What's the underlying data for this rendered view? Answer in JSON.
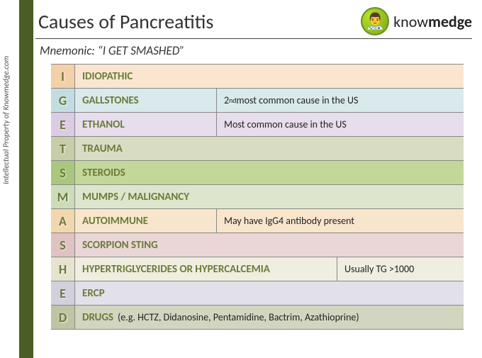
{
  "credit": "Intellectual Property of Knowmedge.com",
  "title": "Causes of Pancreatitis",
  "logo": {
    "prefix": "know",
    "bold": "medge"
  },
  "subtitle": "Mnemonic:  “I GET SMASHED”",
  "colors": {
    "sidebar": "#4a5d23",
    "row_bg": [
      "#fae6d0",
      "#d9e9ec",
      "#e7ddec",
      "#d8dcc2",
      "#c4d79b",
      "#dde6cc",
      "#f8e6cc",
      "#ead6d6",
      "#efeee0",
      "#e2e0e8",
      "#d2d6c0"
    ],
    "letter_bg": [
      "#f2d0a8",
      "#c2dde2",
      "#dccbe4",
      "#c7cda8",
      "#aac77e",
      "#cddcb8",
      "#f2d7ae",
      "#e0c2c2",
      "#e6e4cc",
      "#d3d0de",
      "#bfc5a4"
    ],
    "term_text": "#6b7a3a",
    "letter_text": "#6b7a3a"
  },
  "layout": {
    "term_widths": [
      548,
      200,
      200,
      548,
      548,
      548,
      200,
      548,
      370,
      548,
      548
    ]
  },
  "rows": [
    {
      "letter": "I",
      "term": "IDIOPATHIC",
      "note": "",
      "extra": ""
    },
    {
      "letter": "G",
      "term": "GALLSTONES",
      "note": "2ⁿᵈ most common cause in the US",
      "extra": ""
    },
    {
      "letter": "E",
      "term": "ETHANOL",
      "note": "Most common cause in the US",
      "extra": ""
    },
    {
      "letter": "T",
      "term": "TRAUMA",
      "note": "",
      "extra": ""
    },
    {
      "letter": "S",
      "term": "STEROIDS",
      "note": "",
      "extra": ""
    },
    {
      "letter": "M",
      "term": "MUMPS / MALIGNANCY",
      "note": "",
      "extra": ""
    },
    {
      "letter": "A",
      "term": "AUTOIMMUNE",
      "note": "May have IgG4 antibody present",
      "extra": ""
    },
    {
      "letter": "S",
      "term": "SCORPION STING",
      "note": "",
      "extra": ""
    },
    {
      "letter": "H",
      "term": "HYPERTRIGLYCERIDES OR HYPERCALCEMIA",
      "note": "Usually TG >1000",
      "extra": ""
    },
    {
      "letter": "E",
      "term": "ERCP",
      "note": "",
      "extra": ""
    },
    {
      "letter": "D",
      "term": "DRUGS",
      "note": "",
      "extra": "(e.g. HCTZ, Didanosine, Pentamidine, Bactrim, Azathioprine)"
    }
  ]
}
